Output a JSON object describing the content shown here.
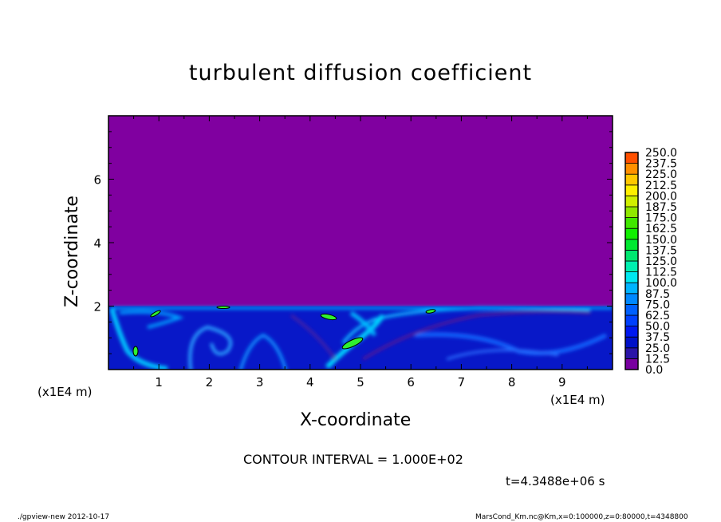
{
  "chart_data": {
    "type": "heatmap",
    "title": "turbulent diffusion coefficient",
    "xlabel": "X-coordinate",
    "ylabel": "Z-coordinate",
    "x_unit": "(x1E4 m)",
    "xlim": [
      0,
      10
    ],
    "ylim": [
      0,
      8
    ],
    "x_ticks": [
      1,
      2,
      3,
      4,
      5,
      6,
      7,
      8,
      9
    ],
    "y_ticks": [
      2,
      4,
      6
    ],
    "colorbar_levels": [
      "0.0",
      "12.5",
      "25.0",
      "37.5",
      "50.0",
      "62.5",
      "75.0",
      "87.5",
      "100.0",
      "112.5",
      "125.0",
      "137.5",
      "150.0",
      "162.5",
      "175.0",
      "187.5",
      "200.0",
      "212.5",
      "225.0",
      "237.5",
      "250.0"
    ],
    "colorbar_colors": [
      "#7800a0",
      "#2a14a8",
      "#0010c8",
      "#0018f0",
      "#0040ff",
      "#0060ff",
      "#0088ff",
      "#00b4ff",
      "#00e8f0",
      "#00f0b0",
      "#00e870",
      "#00e830",
      "#10f000",
      "#40e800",
      "#90e800",
      "#d0f000",
      "#fff000",
      "#ffc800",
      "#ff9000",
      "#ff5000",
      "#ff1818",
      "#ff3040",
      "#ff6070",
      "#ff9090"
    ],
    "background_color": "#8000a0",
    "mixed_layer_top_z": 2.0,
    "contour_interval_text": "CONTOUR INTERVAL = 1.000E+02",
    "time_text": "t=4.3488e+06 s"
  },
  "footer": {
    "left": "./gpview-new  2012-10-17",
    "right": "MarsCond_Km.nc@Km,x=0:100000,z=0:80000,t=4348800"
  }
}
